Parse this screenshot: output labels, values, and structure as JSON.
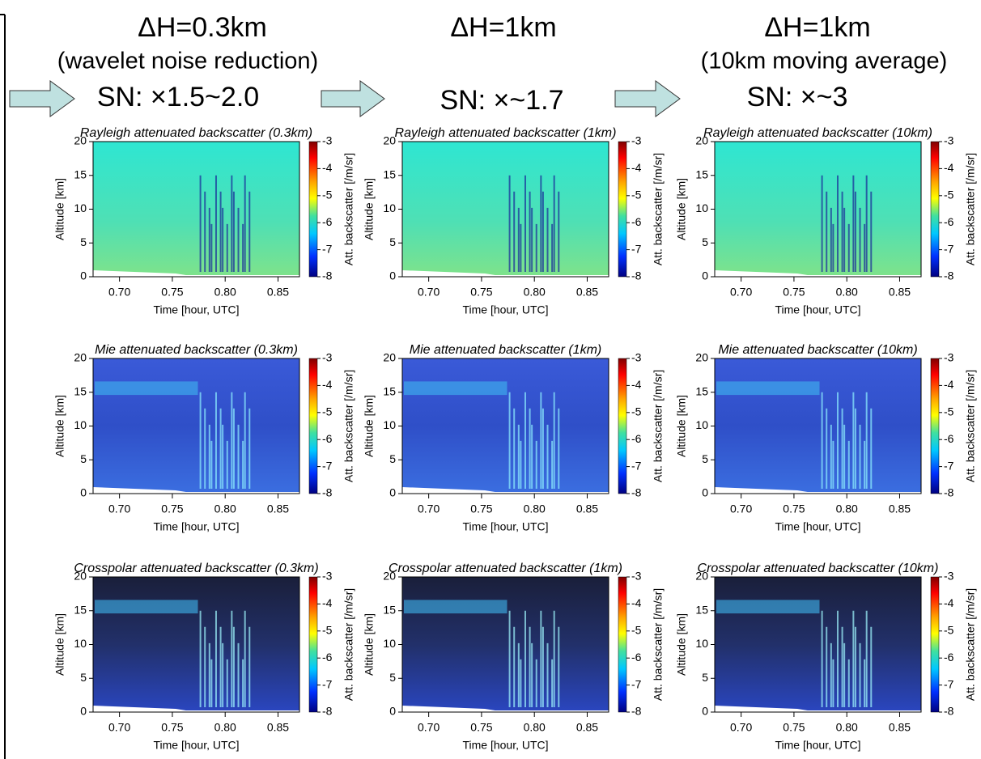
{
  "columns": [
    {
      "heading": "ΔH=0.3km",
      "subheading": "(wavelet noise reduction)",
      "sn": "SN: ×1.5~2.0"
    },
    {
      "heading": "ΔH=1km",
      "sn": "SN: ×~1.7"
    },
    {
      "heading": "ΔH=1km",
      "subheading": "(10km moving average)",
      "sn": "SN: ×~3"
    }
  ],
  "panels": [
    [
      "Rayleigh attenuated backscatter (0.3km)",
      "Rayleigh attenuated backscatter (1km)",
      "Rayleigh attenuated backscatter (10km)"
    ],
    [
      "Mie attenuated backscatter (0.3km)",
      "Mie attenuated backscatter (1km)",
      "Mie attenuated backscatter (10km)"
    ],
    [
      "Crosspolar attenuated backscatter (0.3km)",
      "Crosspolar attenuated backscatter (1km)",
      "Crosspolar attenuated backscatter (10km)"
    ]
  ],
  "axes": {
    "ylabel": "Altitude [km]",
    "xlabel": "Time [hour, UTC]",
    "colorbar_label": "Att. backscatter [/m/sr]",
    "xticks": [
      "0.70",
      "0.75",
      "0.80",
      "0.85"
    ],
    "yticks": [
      "0",
      "5",
      "10",
      "15",
      "20"
    ],
    "colorbar_ticks": [
      "-3",
      "-4",
      "-5",
      "-6",
      "-7",
      "-8"
    ]
  }
}
